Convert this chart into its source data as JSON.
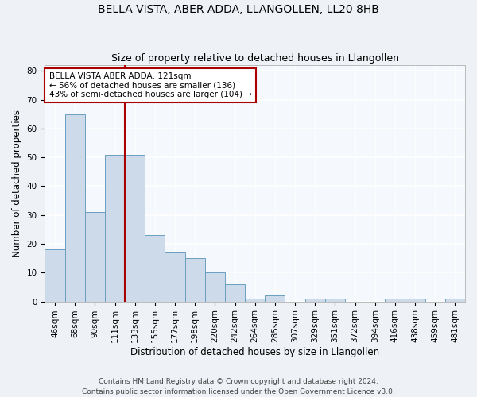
{
  "title": "BELLA VISTA, ABER ADDA, LLANGOLLEN, LL20 8HB",
  "subtitle": "Size of property relative to detached houses in Llangollen",
  "xlabel": "Distribution of detached houses by size in Llangollen",
  "ylabel": "Number of detached properties",
  "categories": [
    "46sqm",
    "68sqm",
    "90sqm",
    "111sqm",
    "133sqm",
    "155sqm",
    "177sqm",
    "198sqm",
    "220sqm",
    "242sqm",
    "264sqm",
    "285sqm",
    "307sqm",
    "329sqm",
    "351sqm",
    "372sqm",
    "394sqm",
    "416sqm",
    "438sqm",
    "459sqm",
    "481sqm"
  ],
  "values": [
    18,
    65,
    31,
    51,
    51,
    23,
    17,
    15,
    10,
    6,
    1,
    2,
    0,
    1,
    1,
    0,
    0,
    1,
    1,
    0,
    1
  ],
  "bar_color": "#ccdaea",
  "bar_edge_color": "#6a9fc0",
  "vline_color": "#aa0000",
  "vline_x": 3.5,
  "annotation_text": "BELLA VISTA ABER ADDA: 121sqm\n← 56% of detached houses are smaller (136)\n43% of semi-detached houses are larger (104) →",
  "annotation_box_color": "white",
  "annotation_box_edge": "#aa0000",
  "ylim": [
    0,
    82
  ],
  "yticks": [
    0,
    10,
    20,
    30,
    40,
    50,
    60,
    70,
    80
  ],
  "footer": "Contains HM Land Registry data © Crown copyright and database right 2024.\nContains public sector information licensed under the Open Government Licence v3.0.",
  "bg_color": "#eef2f7",
  "plot_bg_color": "#f5f8fc",
  "grid_color": "#ffffff",
  "title_fontsize": 10,
  "subtitle_fontsize": 9,
  "axis_label_fontsize": 8.5,
  "tick_fontsize": 7.5,
  "annotation_fontsize": 7.5,
  "footer_fontsize": 6.5
}
